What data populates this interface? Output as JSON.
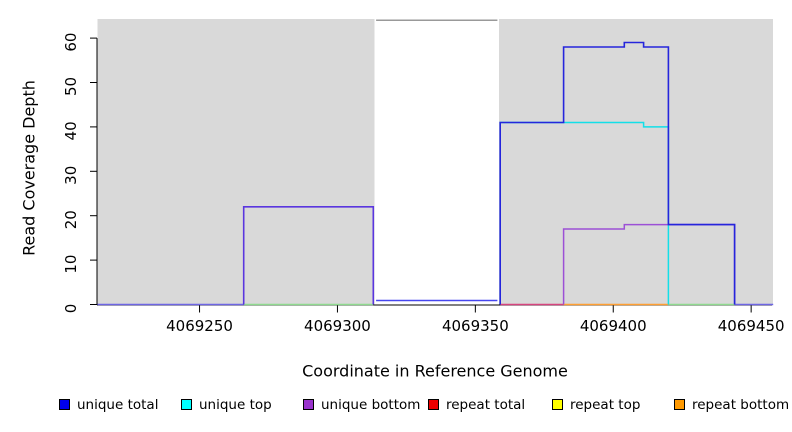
{
  "figure": {
    "xlabel": "Coordinate in Reference Genome",
    "ylabel": "Read Coverage Depth"
  },
  "chart_data": {
    "type": "line",
    "subtype": "step-coverage-plot",
    "xlabel": "Coordinate in Reference Genome",
    "ylabel": "Read Coverage Depth",
    "xlim": [
      4069213,
      4069458
    ],
    "ylim": [
      0,
      64.3
    ],
    "grid": "off",
    "x_ticks": [
      4069250,
      4069300,
      4069350,
      4069400,
      4069450
    ],
    "y_ticks": [
      0,
      10,
      20,
      30,
      40,
      50,
      60
    ],
    "background_color": "#ffffff",
    "masked_region_color": "#d9d9d9",
    "masked_regions": [
      {
        "from": 4069213,
        "to": 4069313.5
      },
      {
        "from": 4069358.5,
        "to": 4069458
      }
    ],
    "clipped_total_line": {
      "from": 4069313.5,
      "to": 4069358.5,
      "value": 64,
      "color": "#999999"
    },
    "series": [
      {
        "name": "unique total",
        "color": "#0000ee",
        "runs": [
          [
            4069213,
            4069266,
            0
          ],
          [
            4069266,
            4069313,
            22
          ],
          [
            4069313,
            4069359,
            0
          ],
          [
            4069359,
            4069382,
            41
          ],
          [
            4069382,
            4069404,
            58
          ],
          [
            4069404,
            4069411,
            59
          ],
          [
            4069411,
            4069420,
            58
          ],
          [
            4069420,
            4069444,
            18
          ],
          [
            4069444,
            4069458,
            0
          ]
        ]
      },
      {
        "name": "unique top",
        "color": "#00ffff",
        "runs": [
          [
            4069213,
            4069359,
            0
          ],
          [
            4069359,
            4069411,
            41
          ],
          [
            4069411,
            4069420,
            40
          ],
          [
            4069420,
            4069458,
            0
          ]
        ]
      },
      {
        "name": "unique bottom",
        "color": "#9933cc",
        "runs": [
          [
            4069213,
            4069382,
            0
          ],
          [
            4069382,
            4069404,
            17
          ],
          [
            4069404,
            4069444,
            18
          ],
          [
            4069444,
            4069458,
            0
          ]
        ]
      },
      {
        "name": "repeat total",
        "color": "#ee0000",
        "runs": [
          [
            4069213,
            4069458,
            0
          ]
        ]
      },
      {
        "name": "repeat top",
        "color": "#ffff00",
        "runs": [
          [
            4069213,
            4069458,
            0
          ]
        ]
      },
      {
        "name": "repeat bottom",
        "color": "#ff9900",
        "runs": [
          [
            4069213,
            4069458,
            0
          ]
        ]
      }
    ],
    "render_lines": [
      {
        "name": "repeat-total-baseline",
        "color": "#d6447e",
        "width": 1.5,
        "closed": false,
        "runs": [
          [
            4069359,
            4069382,
            0
          ]
        ]
      },
      {
        "name": "repeat-bottom-baseline",
        "color": "#ff9f33",
        "width": 1.5,
        "closed": false,
        "runs": [
          [
            4069382,
            4069420,
            0
          ]
        ]
      },
      {
        "name": "green-baseline-left",
        "color": "#8fd98f",
        "width": 1.5,
        "closed": false,
        "runs": [
          [
            4069266,
            4069313,
            0
          ]
        ]
      },
      {
        "name": "green-baseline-right",
        "color": "#8fd98f",
        "width": 1.5,
        "closed": false,
        "runs": [
          [
            4069420,
            4069444,
            0
          ]
        ]
      },
      {
        "name": "blend-baseline-left",
        "color": "#6e66e3",
        "width": 1.5,
        "closed": false,
        "runs": [
          [
            4069213,
            4069266,
            0
          ]
        ]
      },
      {
        "name": "blend-baseline-right",
        "color": "#6e66e3",
        "width": 1.5,
        "closed": false,
        "runs": [
          [
            4069444,
            4069458,
            0
          ]
        ]
      },
      {
        "name": "unique-bottom-line",
        "color": "#9c50d6",
        "width": 1.5,
        "closed": true,
        "runs": [
          [
            4069382,
            4069404,
            17
          ],
          [
            4069404,
            4069444,
            18
          ]
        ]
      },
      {
        "name": "unique-top-line",
        "color": "#12dfe8",
        "width": 1.5,
        "closed": true,
        "runs": [
          [
            4069359,
            4069411,
            41
          ],
          [
            4069411,
            4069420,
            40
          ]
        ]
      },
      {
        "name": "unique-total-band-baseline",
        "color": "#4646ef",
        "width": 1.6,
        "closed": false,
        "runs": [
          [
            4069314,
            4069358,
            0.9
          ]
        ]
      },
      {
        "name": "unique-total-left-box",
        "color": "#5a36df",
        "width": 1.6,
        "closed": true,
        "runs": [
          [
            4069266,
            4069313,
            22
          ]
        ]
      },
      {
        "name": "unique-total-right",
        "color": "#2525dc",
        "width": 1.6,
        "closed": true,
        "runs": [
          [
            4069359,
            4069382,
            41
          ],
          [
            4069382,
            4069404,
            58
          ],
          [
            4069404,
            4069411,
            59
          ],
          [
            4069411,
            4069420,
            58
          ],
          [
            4069420,
            4069444,
            18
          ]
        ]
      },
      {
        "name": "clipped-total-line",
        "color": "#999999",
        "width": 1.5,
        "closed": false,
        "runs": [
          [
            4069314,
            4069358,
            64
          ]
        ]
      }
    ],
    "legend": {
      "position": "bottom-horizontal",
      "entries": [
        {
          "label": "unique total",
          "color": "#0000ee"
        },
        {
          "label": "unique top",
          "color": "#00ffff"
        },
        {
          "label": "unique bottom",
          "color": "#9933cc"
        },
        {
          "label": "repeat total",
          "color": "#ee0000"
        },
        {
          "label": "repeat top",
          "color": "#ffff00"
        },
        {
          "label": "repeat bottom",
          "color": "#ff9900"
        }
      ]
    }
  }
}
